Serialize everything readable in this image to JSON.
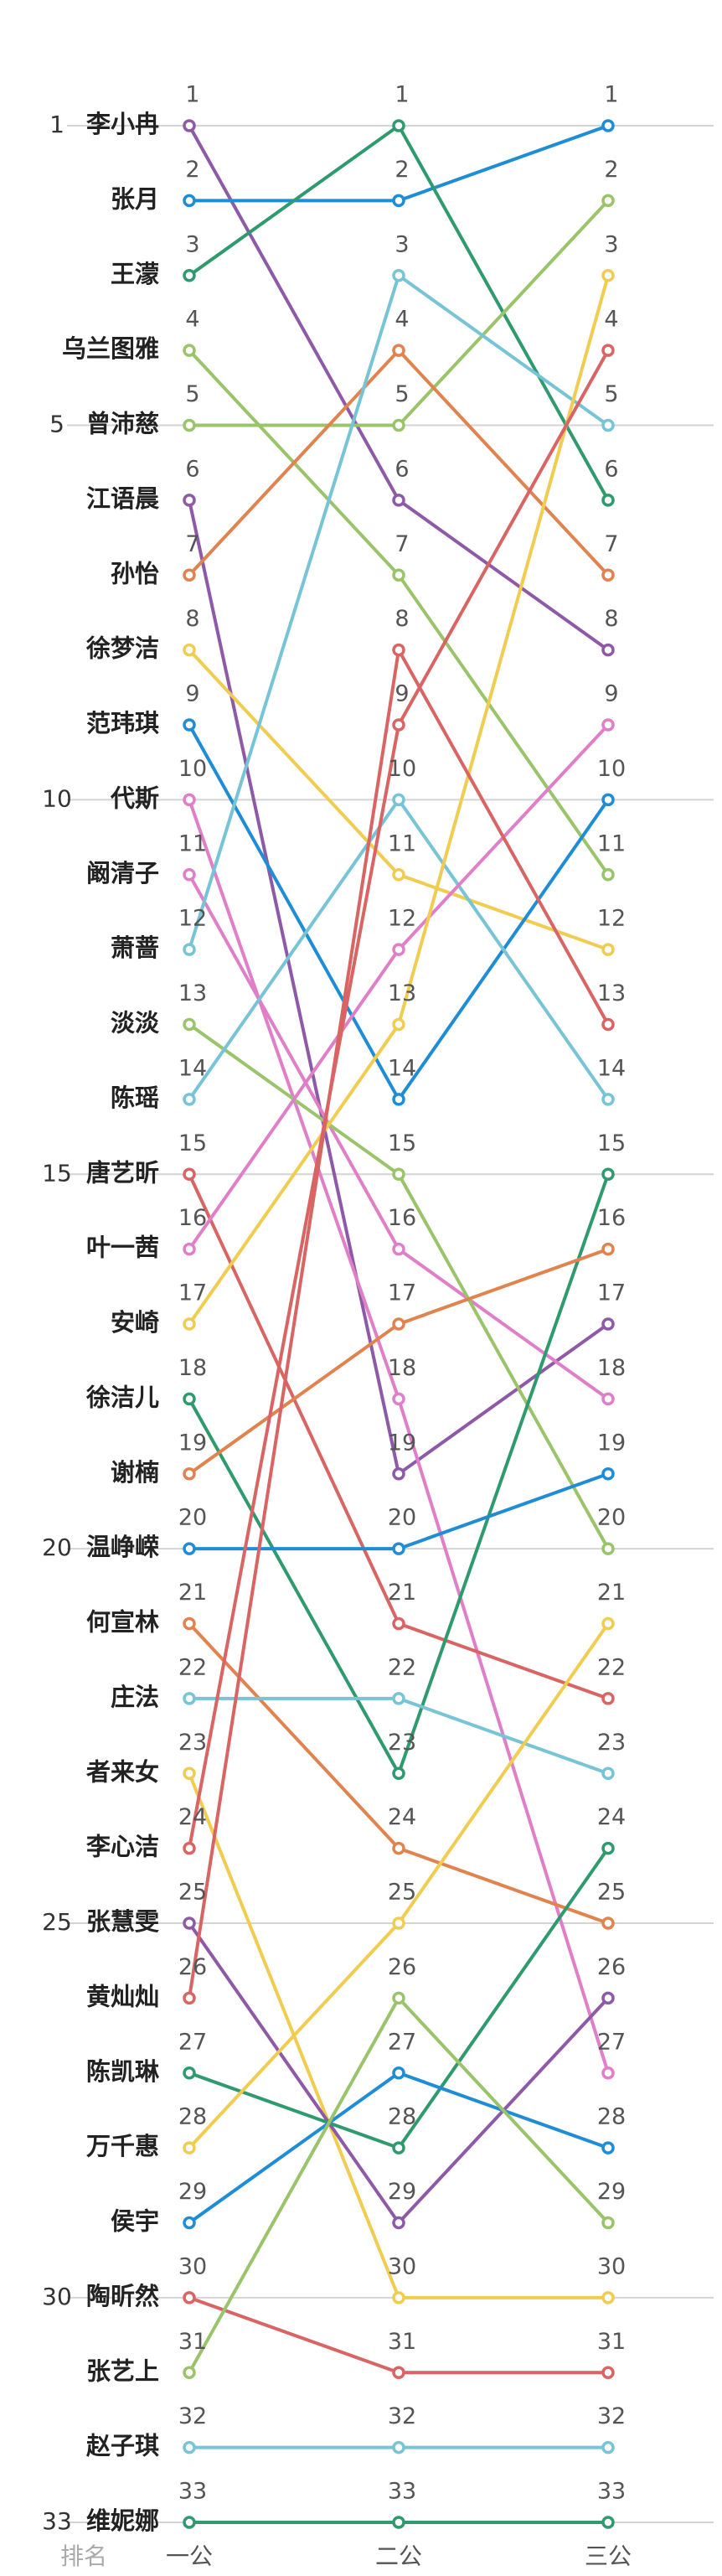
{
  "chart_data": {
    "type": "bump",
    "ylabel": "排名",
    "categories": [
      "一公",
      "二公",
      "三公"
    ],
    "ylim": [
      1,
      33
    ],
    "y_inverted": true,
    "yticks": [
      1,
      5,
      10,
      15,
      20,
      25,
      30,
      33
    ],
    "grid": true,
    "series": [
      {
        "name": "李小冉",
        "color": "#8e5aa8",
        "values": [
          1,
          6,
          8
        ]
      },
      {
        "name": "张月",
        "color": "#1f8dd6",
        "values": [
          2,
          2,
          1
        ]
      },
      {
        "name": "王濛",
        "color": "#2e9a6e",
        "values": [
          3,
          1,
          6
        ]
      },
      {
        "name": "乌兰图雅",
        "color": "#9ac46a",
        "values": [
          4,
          7,
          11
        ]
      },
      {
        "name": "曾沛慈",
        "color": "#9ac46a",
        "values": [
          5,
          5,
          2
        ]
      },
      {
        "name": "江语晨",
        "color": "#8e5aa8",
        "values": [
          6,
          19,
          17
        ]
      },
      {
        "name": "孙怡",
        "color": "#e0834f",
        "values": [
          7,
          4,
          7
        ]
      },
      {
        "name": "徐梦洁",
        "color": "#f0cc50",
        "values": [
          8,
          11,
          12
        ]
      },
      {
        "name": "范玮琪",
        "color": "#1f8dd6",
        "values": [
          9,
          14,
          10
        ]
      },
      {
        "name": "代斯",
        "color": "#e07fc8",
        "values": [
          10,
          18,
          27
        ]
      },
      {
        "name": "阚清子",
        "color": "#e07fc8",
        "values": [
          11,
          16,
          18
        ]
      },
      {
        "name": "萧蔷",
        "color": "#76c4d6",
        "values": [
          12,
          3,
          5
        ]
      },
      {
        "name": "淡淡",
        "color": "#9ac46a",
        "values": [
          13,
          15,
          20
        ]
      },
      {
        "name": "陈瑶",
        "color": "#76c4d6",
        "values": [
          14,
          10,
          14
        ]
      },
      {
        "name": "唐艺昕",
        "color": "#d96464",
        "values": [
          15,
          21,
          22
        ]
      },
      {
        "name": "叶一茜",
        "color": "#e07fc8",
        "values": [
          16,
          12,
          9
        ]
      },
      {
        "name": "安崎",
        "color": "#f0cc50",
        "values": [
          17,
          13,
          3
        ]
      },
      {
        "name": "徐洁儿",
        "color": "#2e9a6e",
        "values": [
          18,
          23,
          15
        ]
      },
      {
        "name": "谢楠",
        "color": "#e0834f",
        "values": [
          19,
          17,
          16
        ]
      },
      {
        "name": "温峥嵘",
        "color": "#1f8dd6",
        "values": [
          20,
          20,
          19
        ]
      },
      {
        "name": "何宣林",
        "color": "#e0834f",
        "values": [
          21,
          24,
          25
        ]
      },
      {
        "name": "庄法",
        "color": "#76c4d6",
        "values": [
          22,
          22,
          23
        ]
      },
      {
        "name": "者来女",
        "color": "#f0cc50",
        "values": [
          23,
          30,
          30
        ]
      },
      {
        "name": "李心洁",
        "color": "#d96464",
        "values": [
          24,
          9,
          4
        ]
      },
      {
        "name": "张慧雯",
        "color": "#8e5aa8",
        "values": [
          25,
          29,
          26
        ]
      },
      {
        "name": "黄灿灿",
        "color": "#d96464",
        "values": [
          26,
          8,
          13
        ]
      },
      {
        "name": "陈凯琳",
        "color": "#2e9a6e",
        "values": [
          27,
          28,
          24
        ]
      },
      {
        "name": "万千惠",
        "color": "#f0cc50",
        "values": [
          28,
          25,
          21
        ]
      },
      {
        "name": "侯宇",
        "color": "#1f8dd6",
        "values": [
          29,
          27,
          28
        ]
      },
      {
        "name": "陶昕然",
        "color": "#d96464",
        "values": [
          30,
          31,
          31
        ]
      },
      {
        "name": "张艺上",
        "color": "#9ac46a",
        "values": [
          31,
          26,
          29
        ]
      },
      {
        "name": "赵子琪",
        "color": "#76c4d6",
        "values": [
          32,
          32,
          32
        ]
      },
      {
        "name": "维妮娜",
        "color": "#2e9a6e",
        "values": [
          33,
          33,
          33
        ]
      }
    ]
  }
}
